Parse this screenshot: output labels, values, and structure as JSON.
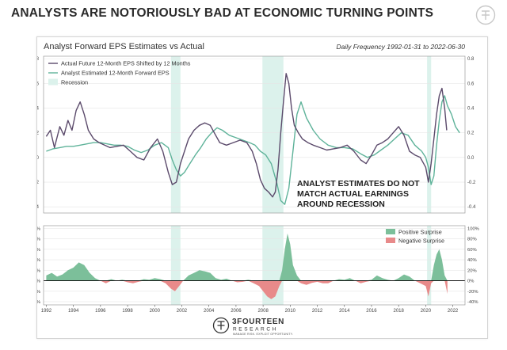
{
  "headline": "ANALYSTS ARE NOTORIOUSLY BAD AT ECONOMIC TURNING POINTS",
  "colors": {
    "actual": "#5b4a6b",
    "estimate": "#5fb39a",
    "recession": "#dcf2ec",
    "positive": "#7cbf9a",
    "negative": "#e88a8a",
    "panel_border": "#d4d4d4"
  },
  "chart_data": [
    {
      "type": "line",
      "title": "Analyst Forward EPS Estimates vs Actual",
      "subtitle": "Daily Frequency 1992-01-31 to 2022-06-30",
      "xlim": [
        1991.8,
        2022.9
      ],
      "ylim": [
        -0.45,
        0.82
      ],
      "yticks": [
        -0.4,
        -0.2,
        0.0,
        0.2,
        0.4,
        0.6,
        0.8
      ],
      "ytick_labels": [
        "-0.4",
        "-0.2",
        "0.0",
        "0.2",
        "0.4",
        "0.6",
        "0.8"
      ],
      "grid": true,
      "legend_position": "top-left",
      "recessions": [
        [
          2001.2,
          2001.9
        ],
        [
          2007.95,
          2009.5
        ],
        [
          2020.1,
          2020.4
        ]
      ],
      "recession_label": "Recession",
      "annotation": [
        "ANALYST ESTIMATES DO NOT",
        "MATCH ACTUAL EARNINGS",
        "AROUND RECESSION"
      ],
      "series": [
        {
          "name": "Actual Future 12-Month EPS Shifted by 12 Months",
          "x": [
            1992.0,
            1992.3,
            1992.6,
            1993.0,
            1993.3,
            1993.6,
            1993.9,
            1994.2,
            1994.5,
            1994.8,
            1995.1,
            1995.5,
            1995.9,
            1996.3,
            1996.7,
            1997.2,
            1997.7,
            1998.2,
            1998.7,
            1999.2,
            1999.7,
            2000.2,
            2000.6,
            2001.0,
            2001.3,
            2001.6,
            2001.9,
            2002.2,
            2002.5,
            2002.9,
            2003.3,
            2003.7,
            2004.1,
            2004.4,
            2004.8,
            2005.3,
            2005.8,
            2006.3,
            2006.8,
            2007.2,
            2007.5,
            2007.8,
            2008.1,
            2008.4,
            2008.7,
            2008.9,
            2009.1,
            2009.3,
            2009.5,
            2009.7,
            2009.9,
            2010.1,
            2010.3,
            2010.6,
            2010.9,
            2011.3,
            2011.7,
            2012.2,
            2012.7,
            2013.2,
            2013.7,
            2014.2,
            2014.7,
            2015.2,
            2015.6,
            2016.0,
            2016.4,
            2016.8,
            2017.2,
            2017.6,
            2018.0,
            2018.4,
            2018.8,
            2019.2,
            2019.6,
            2020.0,
            2020.2,
            2020.4,
            2020.6,
            2020.8,
            2021.0,
            2021.2,
            2021.4,
            2021.55
          ],
          "y": [
            0.17,
            0.22,
            0.08,
            0.25,
            0.18,
            0.3,
            0.22,
            0.38,
            0.45,
            0.35,
            0.22,
            0.15,
            0.12,
            0.1,
            0.08,
            0.09,
            0.1,
            0.05,
            0.0,
            -0.02,
            0.08,
            0.15,
            0.05,
            -0.12,
            -0.22,
            -0.2,
            -0.05,
            0.05,
            0.15,
            0.22,
            0.26,
            0.28,
            0.26,
            0.2,
            0.12,
            0.1,
            0.12,
            0.14,
            0.12,
            0.05,
            -0.05,
            -0.18,
            -0.25,
            -0.28,
            -0.32,
            -0.28,
            -0.1,
            0.2,
            0.45,
            0.68,
            0.6,
            0.4,
            0.26,
            0.2,
            0.15,
            0.12,
            0.1,
            0.08,
            0.06,
            0.07,
            0.08,
            0.1,
            0.05,
            -0.02,
            -0.05,
            0.02,
            0.1,
            0.12,
            0.15,
            0.2,
            0.25,
            0.18,
            0.05,
            0.02,
            0.0,
            -0.08,
            -0.2,
            -0.05,
            0.15,
            0.35,
            0.5,
            0.56,
            0.4,
            0.22
          ]
        },
        {
          "name": "Analyst Estimated 12-Month Forward EPS",
          "x": [
            1992.0,
            1992.5,
            1993.0,
            1993.5,
            1994.0,
            1994.5,
            1995.0,
            1995.5,
            1996.0,
            1996.5,
            1997.0,
            1997.5,
            1998.0,
            1998.5,
            1999.0,
            1999.5,
            2000.0,
            2000.5,
            2001.0,
            2001.3,
            2001.6,
            2001.9,
            2002.2,
            2002.6,
            2003.0,
            2003.4,
            2003.8,
            2004.2,
            2004.6,
            2005.0,
            2005.5,
            2006.0,
            2006.5,
            2007.0,
            2007.4,
            2007.8,
            2008.2,
            2008.6,
            2009.0,
            2009.3,
            2009.6,
            2009.9,
            2010.2,
            2010.5,
            2010.8,
            2011.2,
            2011.7,
            2012.2,
            2012.8,
            2013.4,
            2014.0,
            2014.6,
            2015.2,
            2015.7,
            2016.2,
            2016.7,
            2017.2,
            2017.7,
            2018.2,
            2018.7,
            2019.2,
            2019.7,
            2020.0,
            2020.2,
            2020.4,
            2020.6,
            2020.8,
            2021.0,
            2021.2,
            2021.4,
            2021.6,
            2021.9,
            2022.2,
            2022.5
          ],
          "y": [
            0.05,
            0.07,
            0.08,
            0.09,
            0.09,
            0.1,
            0.11,
            0.12,
            0.12,
            0.11,
            0.1,
            0.1,
            0.09,
            0.06,
            0.04,
            0.06,
            0.1,
            0.12,
            0.08,
            -0.02,
            -0.1,
            -0.15,
            -0.12,
            -0.05,
            0.02,
            0.08,
            0.15,
            0.2,
            0.24,
            0.22,
            0.18,
            0.16,
            0.14,
            0.12,
            0.1,
            0.05,
            0.02,
            -0.05,
            -0.2,
            -0.35,
            -0.38,
            -0.25,
            0.05,
            0.35,
            0.45,
            0.32,
            0.22,
            0.15,
            0.1,
            0.08,
            0.08,
            0.07,
            0.03,
            0.0,
            0.02,
            0.06,
            0.1,
            0.15,
            0.2,
            0.18,
            0.1,
            0.05,
            0.0,
            -0.08,
            -0.22,
            -0.15,
            0.1,
            0.3,
            0.45,
            0.5,
            0.42,
            0.35,
            0.25,
            0.2
          ]
        }
      ]
    },
    {
      "type": "area",
      "xlim": [
        1991.8,
        2022.9
      ],
      "ylim": [
        -0.46,
        1.05
      ],
      "yticks": [
        -0.4,
        -0.2,
        0.0,
        0.2,
        0.4,
        0.6,
        0.8,
        1.0
      ],
      "ytick_labels": [
        "-40%",
        "-20%",
        "0%",
        "20%",
        "40%",
        "60%",
        "80%",
        "100%"
      ],
      "xticks": [
        1992,
        1994,
        1996,
        1998,
        2000,
        2002,
        2004,
        2006,
        2008,
        2010,
        2012,
        2014,
        2016,
        2018,
        2020,
        2022
      ],
      "xtick_labels": [
        "1992",
        "1994",
        "1996",
        "1998",
        "2000",
        "2002",
        "2004",
        "2006",
        "2008",
        "2010",
        "2012",
        "2014",
        "2016",
        "2018",
        "2020",
        "2022"
      ],
      "grid": true,
      "legend_position": "top-right",
      "legend": [
        "Positive Surprise",
        "Negative Surprise"
      ],
      "x": [
        1992.0,
        1992.4,
        1992.8,
        1993.2,
        1993.6,
        1994.0,
        1994.4,
        1994.8,
        1995.2,
        1995.6,
        1996.0,
        1996.4,
        1996.8,
        1997.2,
        1997.6,
        1998.0,
        1998.4,
        1998.8,
        1999.2,
        1999.6,
        2000.0,
        2000.4,
        2000.8,
        2001.2,
        2001.5,
        2001.8,
        2002.1,
        2002.5,
        2002.9,
        2003.3,
        2003.7,
        2004.1,
        2004.5,
        2004.9,
        2005.3,
        2005.7,
        2006.1,
        2006.5,
        2006.9,
        2007.3,
        2007.7,
        2008.0,
        2008.3,
        2008.6,
        2008.9,
        2009.2,
        2009.4,
        2009.6,
        2009.8,
        2010.0,
        2010.2,
        2010.5,
        2010.8,
        2011.2,
        2011.6,
        2012.0,
        2012.4,
        2012.8,
        2013.2,
        2013.6,
        2014.0,
        2014.4,
        2014.8,
        2015.2,
        2015.6,
        2016.0,
        2016.4,
        2016.8,
        2017.2,
        2017.6,
        2018.0,
        2018.4,
        2018.8,
        2019.2,
        2019.6,
        2020.0,
        2020.2,
        2020.4,
        2020.6,
        2020.8,
        2021.0,
        2021.2,
        2021.4,
        2021.6
      ],
      "values": [
        0.1,
        0.15,
        0.08,
        0.12,
        0.2,
        0.25,
        0.35,
        0.3,
        0.15,
        0.05,
        0.0,
        -0.05,
        0.03,
        0.0,
        0.02,
        -0.03,
        -0.05,
        -0.02,
        0.03,
        0.02,
        0.05,
        0.03,
        -0.05,
        -0.15,
        -0.2,
        -0.1,
        0.0,
        0.1,
        0.15,
        0.2,
        0.18,
        0.15,
        0.05,
        0.02,
        0.04,
        0.0,
        -0.03,
        -0.02,
        0.02,
        -0.05,
        -0.1,
        -0.2,
        -0.3,
        -0.35,
        -0.3,
        -0.1,
        0.2,
        0.6,
        0.9,
        0.7,
        0.3,
        0.1,
        -0.05,
        -0.08,
        -0.04,
        -0.02,
        -0.05,
        -0.05,
        0.0,
        0.03,
        0.02,
        0.05,
        0.0,
        -0.05,
        -0.02,
        0.02,
        0.1,
        0.05,
        0.02,
        0.0,
        0.05,
        0.12,
        0.08,
        0.0,
        -0.05,
        -0.1,
        -0.3,
        -0.05,
        0.3,
        0.5,
        0.6,
        0.4,
        0.1,
        -0.25
      ]
    }
  ],
  "footer_logo": {
    "name": "3FOURTEEN",
    "line2": "RESEARCH",
    "tagline": "MANAGE RISK. EXPLOIT OPPORTUNITY."
  }
}
